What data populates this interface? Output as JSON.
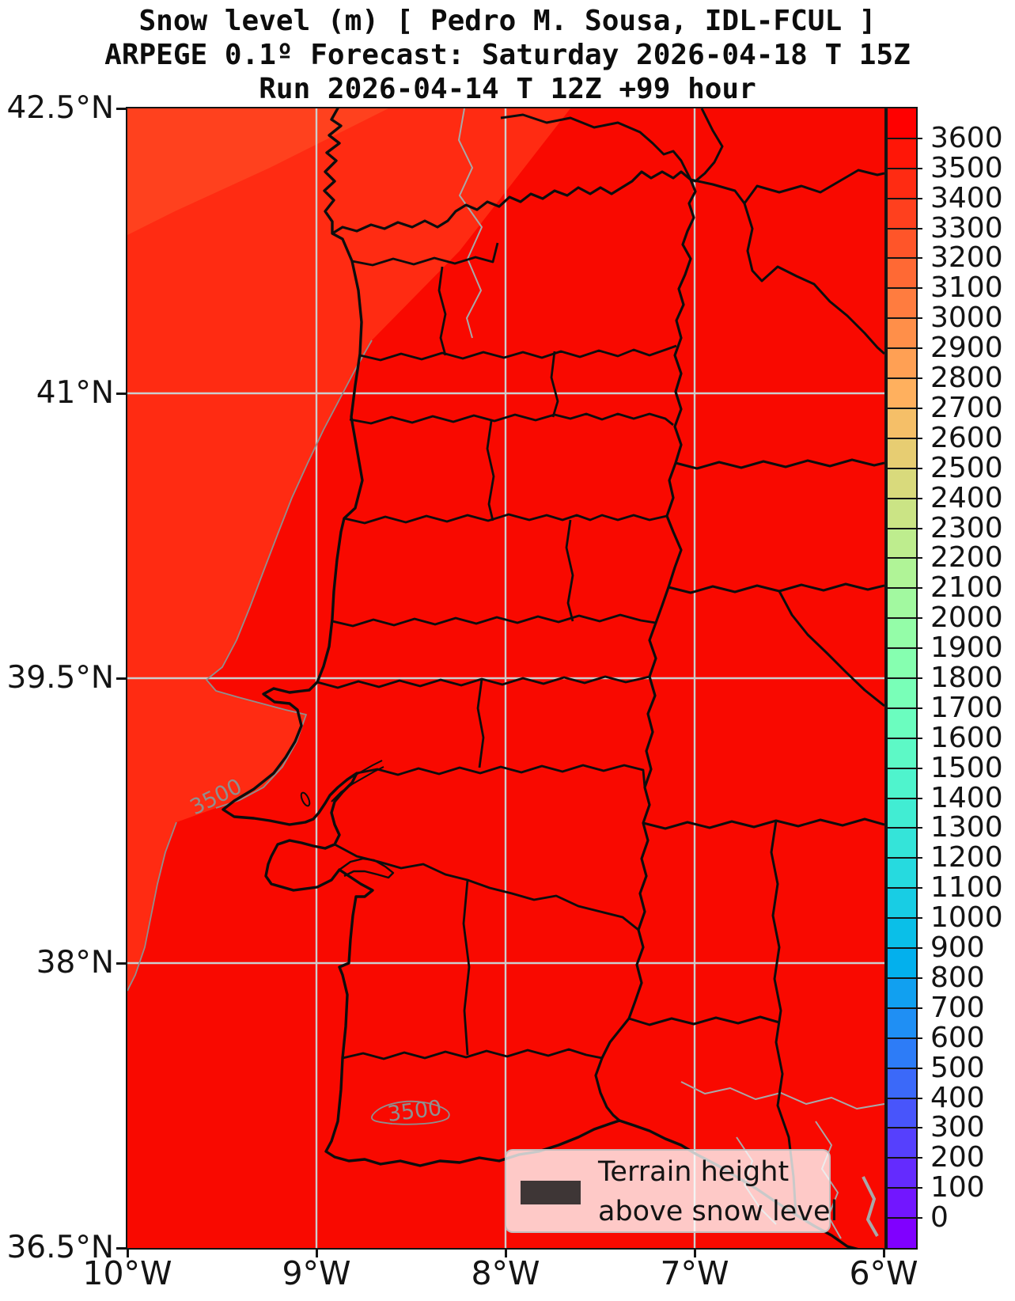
{
  "title": {
    "line1": "Snow level (m) [ Pedro M. Sousa, IDL-FCUL ]",
    "line2": "ARPEGE 0.1º Forecast: Saturday 2026-04-18 T 15Z",
    "line3": "Run 2026-04-14 T 12Z +99 hour"
  },
  "map": {
    "y_axis": {
      "labels": [
        "42.5°N",
        "41°N",
        "39.5°N",
        "38°N",
        "36.5°N"
      ]
    },
    "x_axis": {
      "labels": [
        "10°W",
        "9°W",
        "8°W",
        "7°W",
        "6°W"
      ]
    },
    "contour_labels": [
      {
        "text": "3500"
      },
      {
        "text": "3500"
      }
    ],
    "gridline_color": "#cdcdcd",
    "border_color": "#131313",
    "coastline_color": "#0d0d0d",
    "river_color": "#a8a8a8",
    "contour_color": "#8f8f8f",
    "fill_main": "#F90900",
    "fill_band_3400_3500": "#FF2B12",
    "fill_band_3300_3400": "#FF411E"
  },
  "legend": {
    "line1": "Terrain height",
    "line2": "above snow level",
    "swatch_color": "#3E3636"
  },
  "colorbar": {
    "unit": "m",
    "tick_labels": [
      "0",
      "100",
      "200",
      "300",
      "400",
      "500",
      "600",
      "700",
      "800",
      "900",
      "1000",
      "1100",
      "1200",
      "1300",
      "1400",
      "1500",
      "1600",
      "1700",
      "1800",
      "1900",
      "2000",
      "2100",
      "2200",
      "2300",
      "2400",
      "2500",
      "2600",
      "2700",
      "2800",
      "2900",
      "3000",
      "3100",
      "3200",
      "3300",
      "3400",
      "3500",
      "3600"
    ],
    "segment_colors": [
      "#8000FF",
      "#7216FF",
      "#642BFE",
      "#5640FD",
      "#4855FB",
      "#3B69F9",
      "#2D7CF7",
      "#1F8FF4",
      "#11A0F0",
      "#03B0ED",
      "#0ABFE8",
      "#18CDE4",
      "#26DADF",
      "#34E4D9",
      "#41EDD3",
      "#4FF4CD",
      "#5DF9C6",
      "#6BFDBF",
      "#79FFB8",
      "#86FFB0",
      "#94FDA8",
      "#A2F9A0",
      "#B0F497",
      "#BEED8E",
      "#CBE485",
      "#D9DA7C",
      "#E7CD72",
      "#F5BF68",
      "#FFB05E",
      "#FFA054",
      "#FF8F49",
      "#FF7C3F",
      "#FF6934",
      "#FF5529",
      "#FF401E",
      "#FF2B12",
      "#FF1607",
      "#FF0000"
    ]
  },
  "chart_data": {
    "type": "heatmap",
    "title": "Snow level (m) [ Pedro M. Sousa, IDL-FCUL ] — ARPEGE 0.1º Forecast: Saturday 2026-04-18 T 15Z — Run 2026-04-14 T 12Z +99 hour",
    "x_ticks": [
      "10°W",
      "9°W",
      "8°W",
      "7°W",
      "6°W"
    ],
    "y_ticks": [
      "42.5°N",
      "41°N",
      "39.5°N",
      "38°N",
      "36.5°N"
    ],
    "xlim_longitude_west_deg": [
      10,
      6
    ],
    "ylim_latitude_north_deg": [
      36.5,
      42.5
    ],
    "colorbar_range": {
      "min": 0,
      "max": 3600,
      "step": 100,
      "unit": "m",
      "colormap": "rainbow",
      "n_segments": 38
    },
    "field_summary": "Snow level is ~3300–3600+ m over the entire Iberian domain (solid red shading). Values dip slightly below 3500 m only offshore to the northwest (labelled 3500 m contour paralleling the Portuguese west coast) and in one small closed 3500 m contour over the Algarve hills. No terrain above snow level anywhere on the map.",
    "contours": [
      {
        "level": 3500,
        "location": "offshore, west of Portuguese coast"
      },
      {
        "level": 3500,
        "location": "small closed contour over Algarve"
      }
    ],
    "legend": "Terrain height above snow level (dark patch symbol — no such areas present)"
  }
}
